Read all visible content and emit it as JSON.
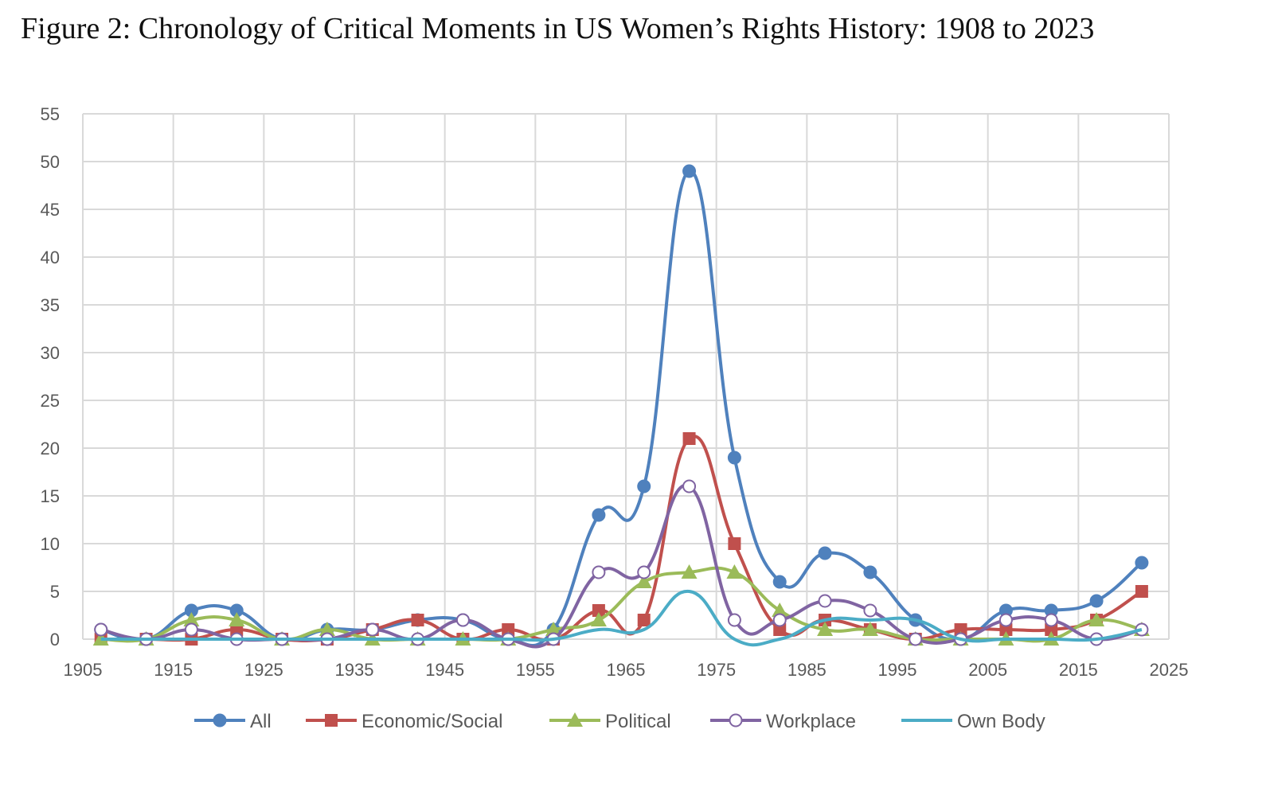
{
  "figure": {
    "title": "Figure 2: Chronology of Critical Moments in US Women’s Rights History: 1908 to 2023"
  },
  "chart_data": {
    "type": "line",
    "title": "",
    "xlabel": "",
    "ylabel": "",
    "xlim": [
      1905,
      2025
    ],
    "ylim": [
      0,
      55
    ],
    "x_ticks": [
      1905,
      1915,
      1925,
      1935,
      1945,
      1955,
      1965,
      1975,
      1985,
      1995,
      2005,
      2015,
      2025
    ],
    "y_ticks": [
      0,
      5,
      10,
      15,
      20,
      25,
      30,
      35,
      40,
      45,
      50,
      55
    ],
    "grid": true,
    "smooth": true,
    "legend_position": "bottom",
    "x": [
      1907,
      1912,
      1917,
      1922,
      1927,
      1932,
      1937,
      1942,
      1947,
      1952,
      1957,
      1962,
      1967,
      1972,
      1977,
      1982,
      1987,
      1992,
      1997,
      2002,
      2007,
      2012,
      2017,
      2022
    ],
    "series": [
      {
        "name": "All",
        "color": "#4F81BD",
        "marker": "circle",
        "values": [
          1,
          0,
          3,
          3,
          0,
          1,
          1,
          2,
          2,
          0,
          1,
          13,
          16,
          49,
          19,
          6,
          9,
          7,
          2,
          0,
          3,
          3,
          4,
          8
        ]
      },
      {
        "name": "Economic/Social",
        "color": "#C0504D",
        "marker": "square",
        "values": [
          0,
          0,
          0,
          1,
          0,
          0,
          1,
          2,
          0,
          1,
          0,
          3,
          2,
          21,
          10,
          1,
          2,
          1,
          0,
          1,
          1,
          1,
          2,
          5
        ]
      },
      {
        "name": "Political",
        "color": "#9BBB59",
        "marker": "triangle",
        "values": [
          0,
          0,
          2,
          2,
          0,
          1,
          0,
          0,
          0,
          0,
          1,
          2,
          6,
          7,
          7,
          3,
          1,
          1,
          0,
          0,
          0,
          0,
          2,
          1
        ]
      },
      {
        "name": "Workplace",
        "color": "#8064A2",
        "marker": "open-circle",
        "values": [
          1,
          0,
          1,
          0,
          0,
          0,
          1,
          0,
          2,
          0,
          0,
          7,
          7,
          16,
          2,
          2,
          4,
          3,
          0,
          0,
          2,
          2,
          0,
          1
        ]
      },
      {
        "name": "Own Body",
        "color": "#4BACC6",
        "marker": "none",
        "values": [
          0,
          0,
          0,
          0,
          0,
          0,
          0,
          0,
          0,
          0,
          0,
          1,
          1,
          5,
          0,
          0,
          2,
          2,
          2,
          0,
          0,
          0,
          0,
          1
        ]
      }
    ]
  }
}
